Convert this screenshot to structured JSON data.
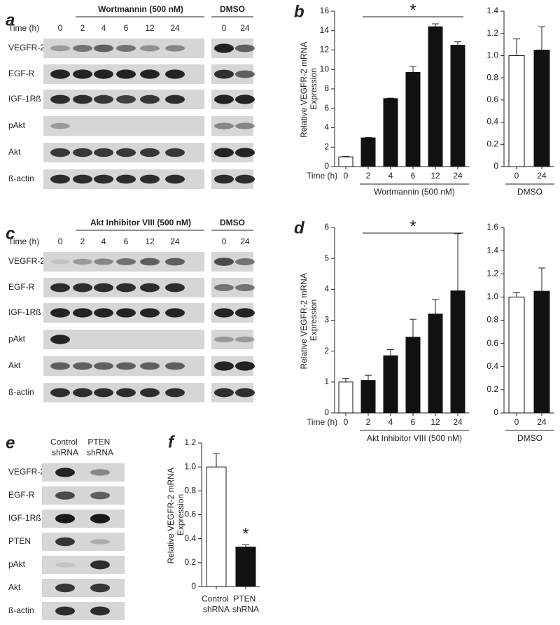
{
  "blots": {
    "a": {
      "letter": "a",
      "treatment": "Wortmannin (500 nM)",
      "control": "DMSO",
      "time_label": "Time (h)",
      "lanes": [
        "0",
        "2",
        "4",
        "6",
        "12",
        "24"
      ],
      "control_lanes": [
        "0",
        "24"
      ],
      "rows": [
        "VEGFR-2",
        "EGF-R",
        "IGF-1Rß",
        "pAkt",
        "Akt",
        "ß-actin"
      ]
    },
    "c": {
      "letter": "c",
      "treatment": "Akt Inhibitor VIII (500 nM)",
      "control": "DMSO",
      "time_label": "Time (h)",
      "lanes": [
        "0",
        "2",
        "4",
        "6",
        "12",
        "24"
      ],
      "control_lanes": [
        "0",
        "24"
      ],
      "rows": [
        "VEGFR-2",
        "EGF-R",
        "IGF-1Rß",
        "pAkt",
        "Akt",
        "ß-actin"
      ]
    },
    "e": {
      "letter": "e",
      "lanes": [
        "Control shRNA",
        "PTEN shRNA"
      ],
      "rows": [
        "VEGFR-2",
        "EGF-R",
        "IGF-1Rß",
        "PTEN",
        "pAkt",
        "Akt",
        "ß-actin"
      ]
    }
  },
  "chart_data": [
    {
      "type": "bar",
      "letter": "b",
      "ylabel": "Relative VEGFR-2 mRNA Expression",
      "time_label": "Time (h)",
      "xlabel": "Wortmannin (500 nM)",
      "significance": "*",
      "categories": [
        "0",
        "2",
        "4",
        "6",
        "12",
        "24"
      ],
      "values": [
        1,
        2.95,
        7,
        9.7,
        14.4,
        12.5
      ],
      "errors": [
        0.05,
        0.05,
        0.05,
        0.6,
        0.3,
        0.35
      ],
      "colors": [
        "#ffffff",
        "#111111",
        "#111111",
        "#111111",
        "#111111",
        "#111111"
      ],
      "ylim": [
        0,
        16
      ],
      "yticks": [
        0,
        2,
        4,
        6,
        8,
        10,
        12,
        14,
        16
      ]
    },
    {
      "type": "bar",
      "xlabel": "DMSO",
      "categories": [
        "0",
        "24"
      ],
      "values": [
        1,
        1.05
      ],
      "errors": [
        0.15,
        0.21
      ],
      "colors": [
        "#ffffff",
        "#111111"
      ],
      "ylim": [
        0,
        1.4
      ],
      "yticks": [
        0,
        0.2,
        0.4,
        0.6,
        0.8,
        {
          "value": 1,
          "label": "1.0"
        },
        1.2,
        1.4
      ]
    },
    {
      "type": "bar",
      "letter": "d",
      "ylabel": "Relative VEGFR-2 mRNA Expression",
      "time_label": "Time (h)",
      "xlabel": "Akt Inhibitor VIII (500 nM)",
      "significance": "*",
      "categories": [
        "0",
        "2",
        "4",
        "6",
        "12",
        "24"
      ],
      "values": [
        1,
        1.05,
        1.85,
        2.45,
        3.2,
        3.95
      ],
      "errors": [
        0.12,
        0.17,
        0.2,
        0.58,
        0.47,
        1.85
      ],
      "colors": [
        "#ffffff",
        "#111111",
        "#111111",
        "#111111",
        "#111111",
        "#111111"
      ],
      "ylim": [
        0,
        6
      ],
      "yticks": [
        0,
        1,
        2,
        3,
        4,
        5,
        6
      ]
    },
    {
      "type": "bar",
      "xlabel": "DMSO",
      "categories": [
        "0",
        "24"
      ],
      "values": [
        1,
        1.05
      ],
      "errors": [
        0.04,
        0.2
      ],
      "colors": [
        "#ffffff",
        "#111111"
      ],
      "ylim": [
        0,
        1.6
      ],
      "yticks": [
        0,
        0.2,
        0.4,
        0.6,
        0.8,
        {
          "value": 1,
          "label": "1.0"
        },
        1.2,
        1.4,
        1.6
      ]
    },
    {
      "type": "bar",
      "letter": "f",
      "ylabel": "Relative VEGFR-2 mRNA Expression",
      "significance": "*",
      "categories": [
        "Control shRNA",
        "PTEN shRNA"
      ],
      "values": [
        1,
        0.33
      ],
      "errors": [
        0.11,
        0.02
      ],
      "colors": [
        "#ffffff",
        "#111111"
      ],
      "ylim": [
        0,
        1.2
      ],
      "yticks": [
        0,
        0.2,
        0.4,
        0.6,
        0.8,
        {
          "value": 1,
          "label": "1.0"
        },
        1.2
      ]
    }
  ]
}
